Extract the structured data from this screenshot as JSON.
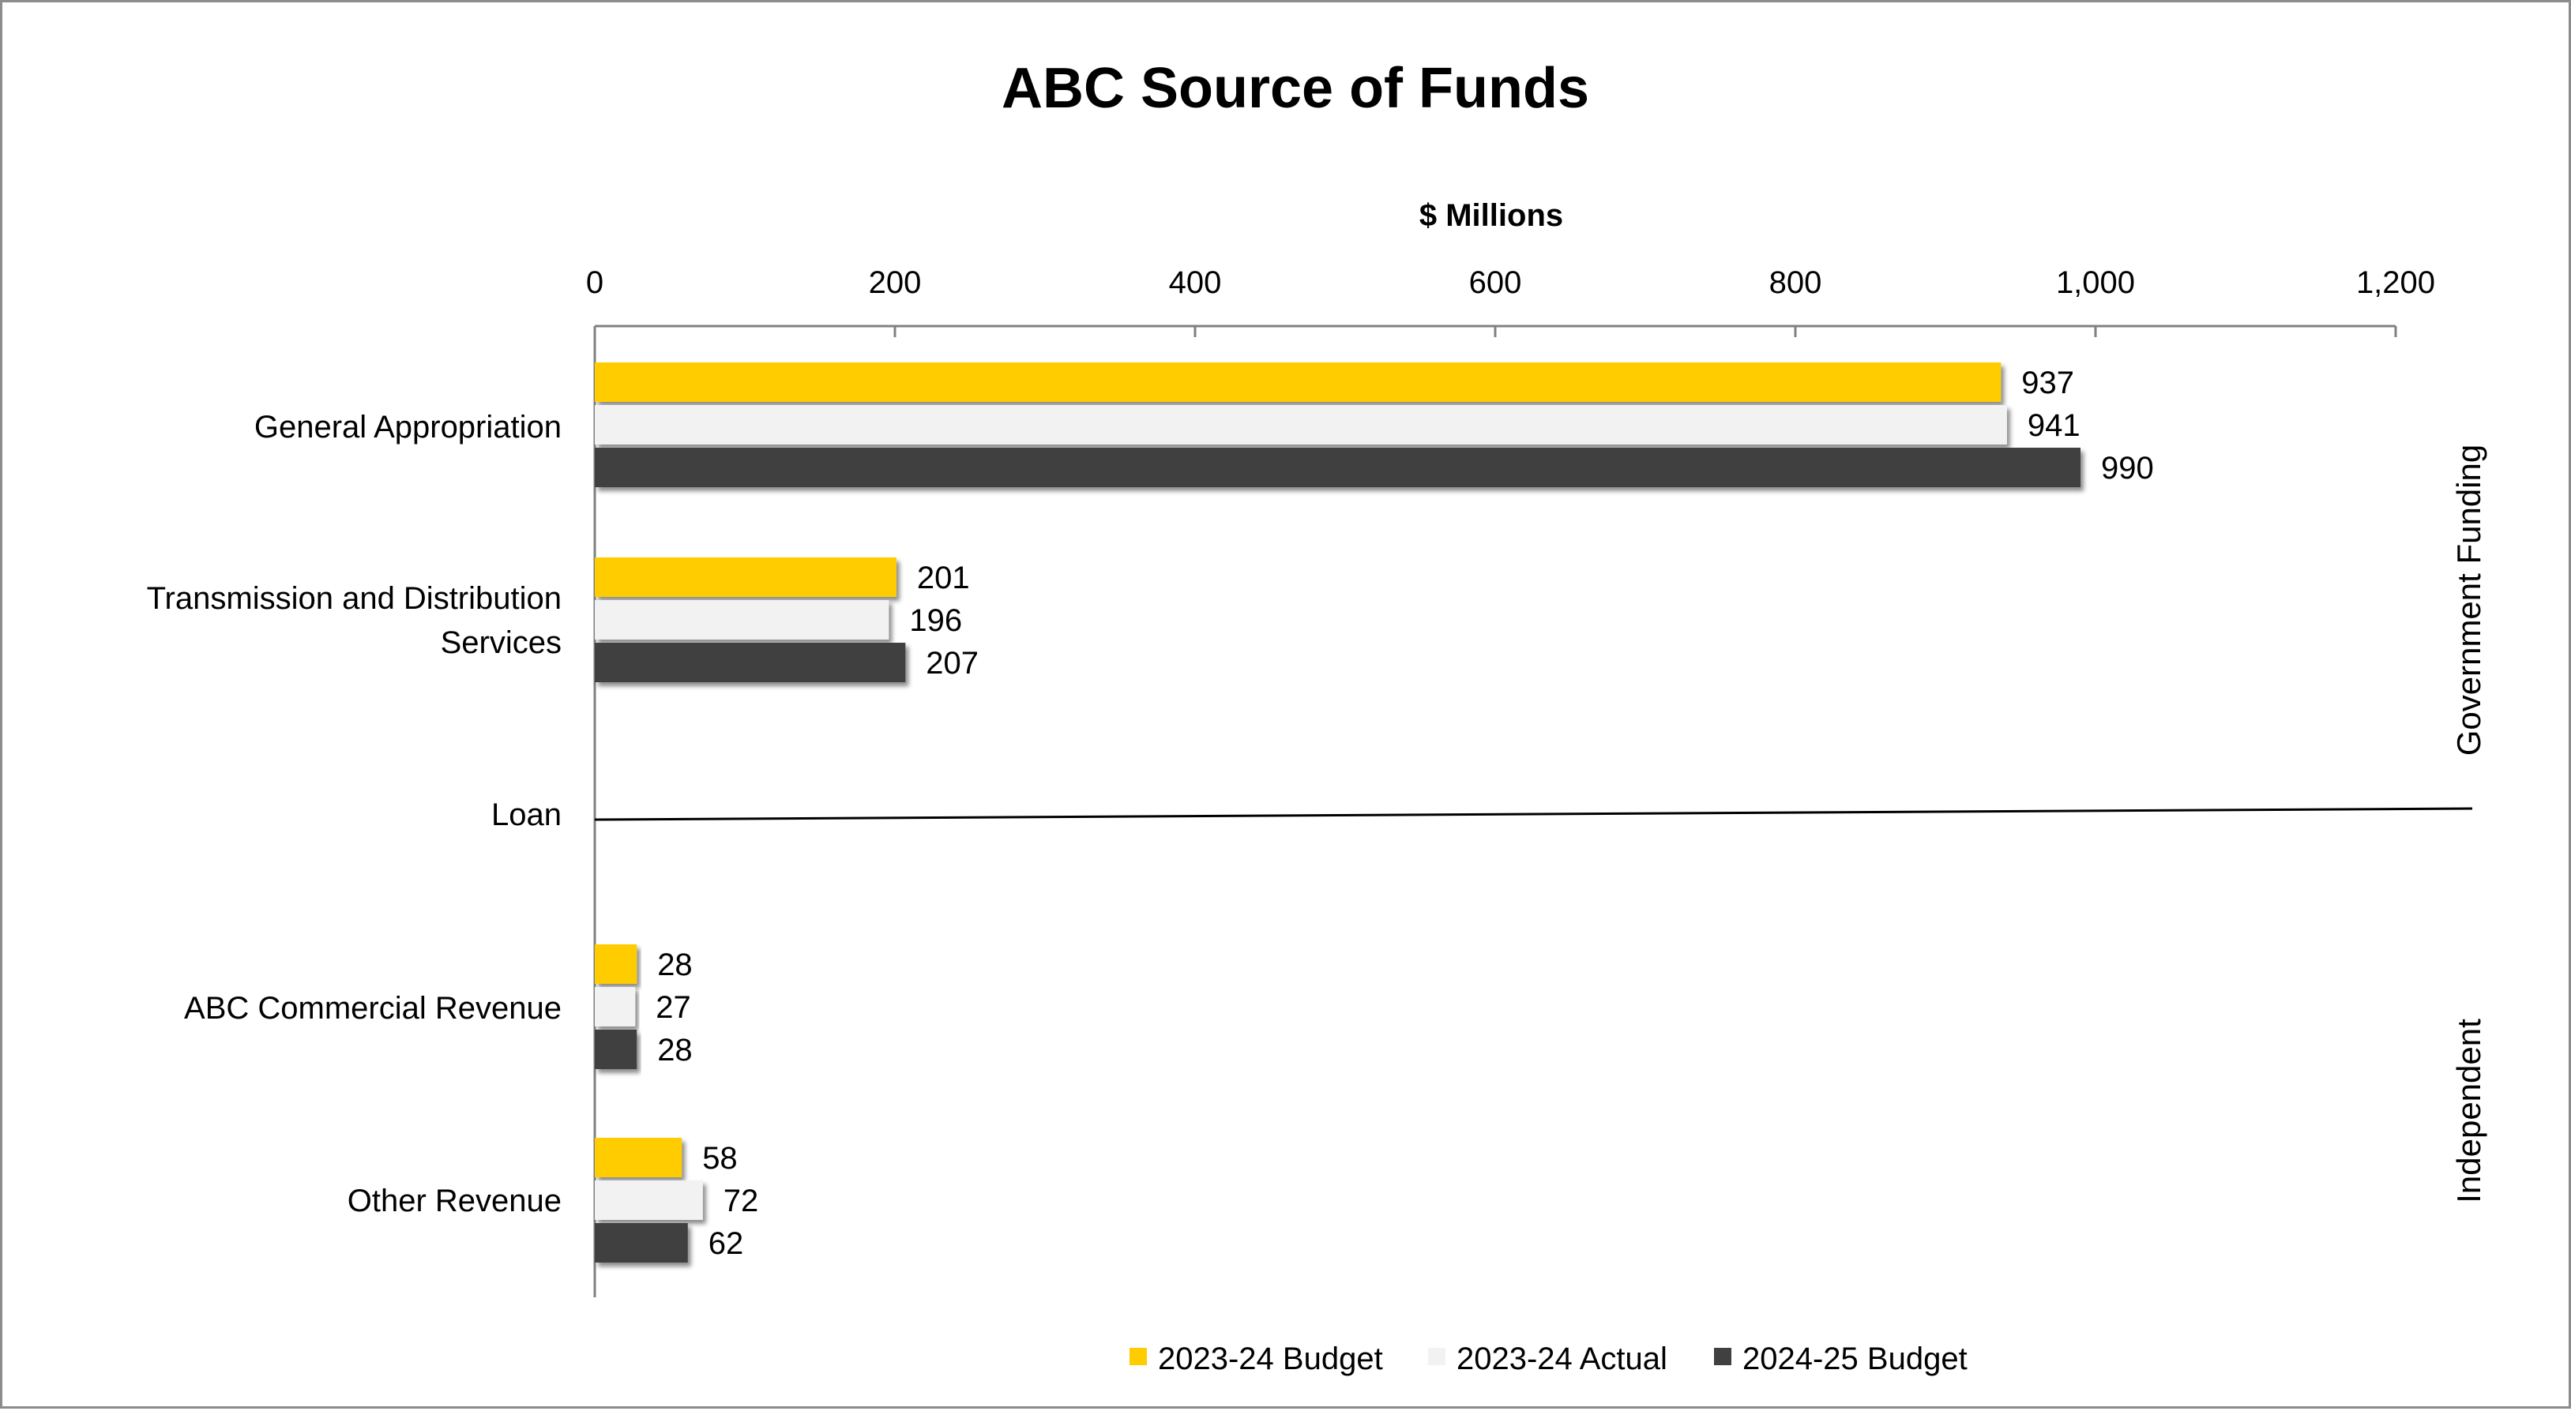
{
  "chart_data": {
    "type": "bar",
    "orientation": "horizontal",
    "title": "ABC Source of Funds",
    "xlabel": "$ Millions",
    "xlim": [
      0,
      1200
    ],
    "xticks": [
      "0",
      "200",
      "400",
      "600",
      "800",
      "1,000",
      "1,200"
    ],
    "categories": [
      [
        "General Appropriation"
      ],
      [
        "Transmission and Distribution",
        "Services"
      ],
      [
        "Loan"
      ],
      [
        "ABC Commercial Revenue"
      ],
      [
        "Other Revenue"
      ]
    ],
    "series": [
      {
        "name": "2023-24 Budget",
        "color": "#FFCC00",
        "values": [
          937,
          201,
          null,
          28,
          58
        ]
      },
      {
        "name": "2023-24 Actual",
        "color": "#F2F2F2",
        "values": [
          941,
          196,
          null,
          27,
          72
        ]
      },
      {
        "name": "2024-25 Budget",
        "color": "#404040",
        "values": [
          990,
          207,
          null,
          28,
          62
        ]
      }
    ],
    "groups": [
      "Government Funding",
      "Independent"
    ],
    "legend_position": "bottom",
    "grid": false
  }
}
